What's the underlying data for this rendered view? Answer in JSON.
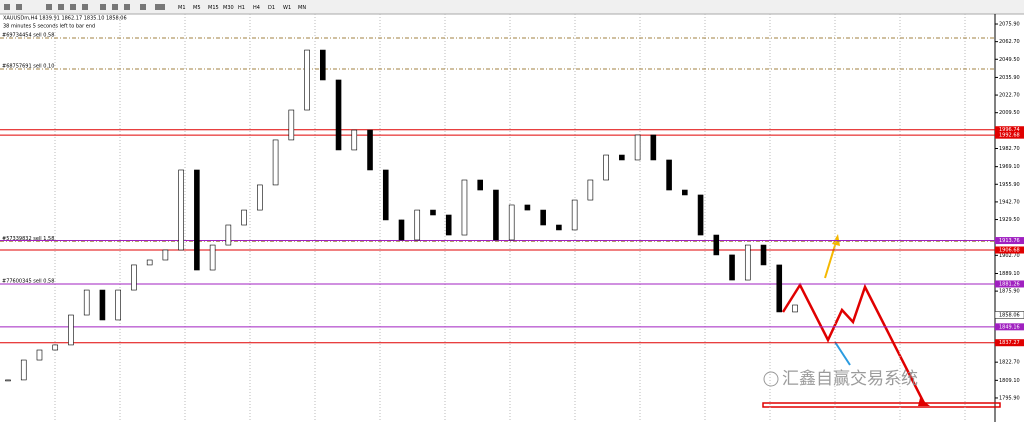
{
  "toolbar": {
    "timeframes": [
      "M1",
      "M5",
      "M15",
      "M30",
      "H1",
      "H4",
      "D1",
      "W1",
      "MN"
    ]
  },
  "chart_info": {
    "symbol_line": "XAUUSDm,H4 1839.91 1862.17 1835.10 1858.06",
    "timer": "38 minutes 5 seconds left to bar end"
  },
  "price_axis": {
    "ylim": [
      1777.9,
      2083.4
    ],
    "ticks": [
      {
        "value": 2075.9,
        "label": "2075.90"
      },
      {
        "value": 2062.7,
        "label": "2062.70"
      },
      {
        "value": 2049.5,
        "label": "2049.50"
      },
      {
        "value": 2035.9,
        "label": "2035.90"
      },
      {
        "value": 2022.7,
        "label": "2022.70"
      },
      {
        "value": 2009.5,
        "label": "2009.50"
      },
      {
        "value": 1982.7,
        "label": "1982.70"
      },
      {
        "value": 1969.1,
        "label": "1969.10"
      },
      {
        "value": 1955.9,
        "label": "1955.90"
      },
      {
        "value": 1942.7,
        "label": "1942.70"
      },
      {
        "value": 1929.5,
        "label": "1929.50"
      },
      {
        "value": 1902.7,
        "label": "1902.70"
      },
      {
        "value": 1889.1,
        "label": "1889.10"
      },
      {
        "value": 1875.9,
        "label": "1875.90"
      },
      {
        "value": 1822.7,
        "label": "1822.70"
      },
      {
        "value": 1809.1,
        "label": "1809.10"
      },
      {
        "value": 1795.9,
        "label": "1795.90"
      }
    ]
  },
  "orders": [
    {
      "price": 2065.4,
      "label": "#69734454 sell 0.58"
    },
    {
      "price": 2042.2,
      "label": "#68757691 sell 0.10"
    },
    {
      "price": 1913.2,
      "label": "#57339832 sell 1.58"
    },
    {
      "price": 1881.26,
      "label": "#77600345 sell 0.58"
    }
  ],
  "levels": [
    {
      "price": 1996.74,
      "color": "#e00000"
    },
    {
      "price": 1992.68,
      "color": "#e00000"
    },
    {
      "price": 1913.76,
      "color": "#a020c0"
    },
    {
      "price": 1906.68,
      "color": "#e00000"
    },
    {
      "price": 1881.26,
      "color": "#a020c0"
    },
    {
      "price": 1858.06,
      "color": "#ffffff"
    },
    {
      "price": 1849.16,
      "color": "#a020c0"
    },
    {
      "price": 1837.27,
      "color": "#e00000"
    }
  ],
  "candles": [
    1809.4,
    1824.3,
    1831.8,
    1835.6,
    1858.0,
    1876.7,
    1854.3,
    1876.7,
    1895.5,
    1899.2,
    1906.7,
    1966.6,
    1891.7,
    1910.4,
    1925.4,
    1936.6,
    1955.4,
    1989.1,
    2011.5,
    2056.4,
    2034.0,
    1981.6,
    1996.5,
    1966.6,
    1929.2,
    1914.2,
    1936.6,
    1932.9,
    1917.9,
    1959.1,
    1951.6,
    1914.2,
    1940.4,
    1936.6,
    1925.4,
    1921.7,
    1944.1,
    1959.1,
    1977.8,
    1974.1,
    1992.8,
    1974.1,
    1951.6,
    1947.9,
    1917.9,
    1903.0,
    1884.2,
    1910.4,
    1895.5,
    1860.3,
    1865.5
  ],
  "watermark": "汇鑫自赢交易系统"
}
